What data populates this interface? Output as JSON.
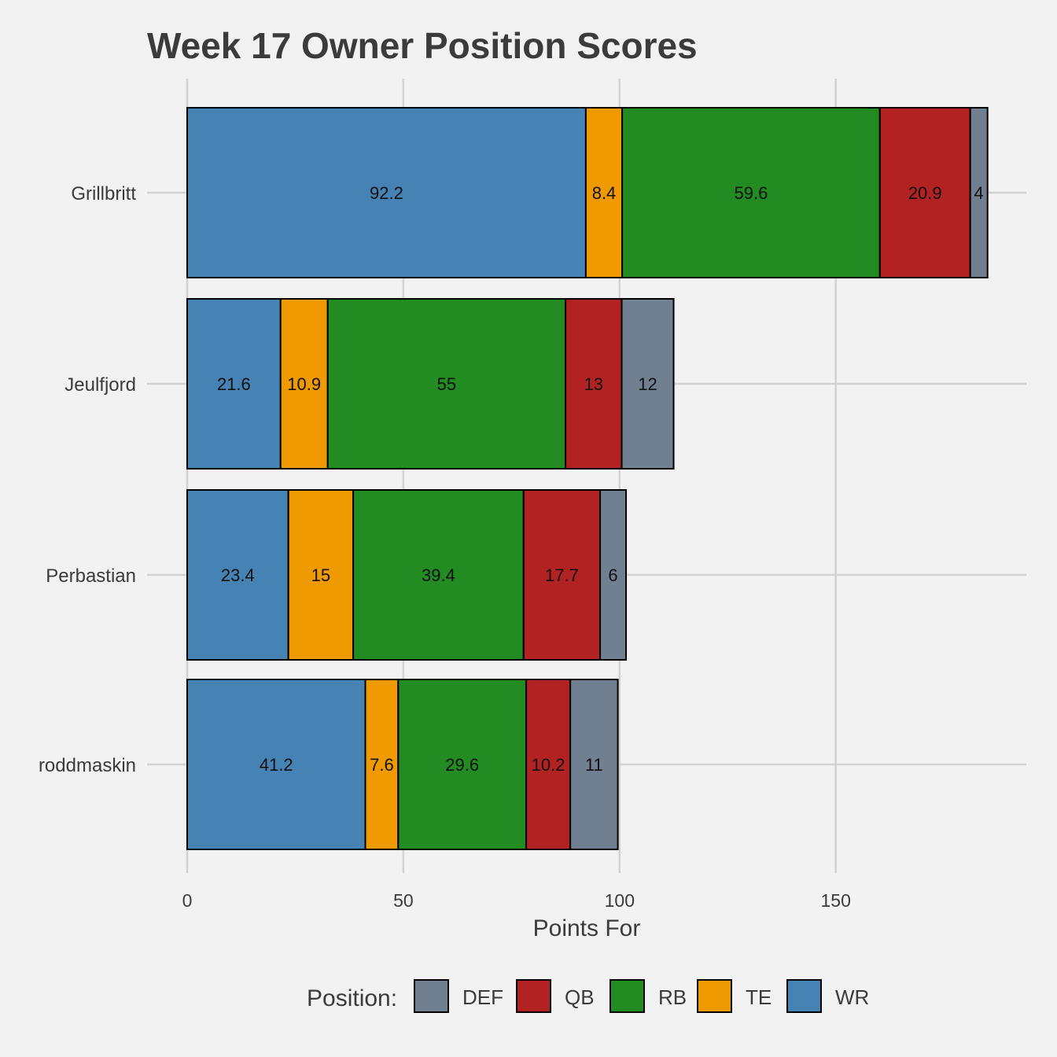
{
  "chart_data": {
    "type": "bar",
    "orientation": "horizontal",
    "stacked": true,
    "title": "Week 17 Owner Position Scores",
    "xlabel": "Points For",
    "ylabel": "",
    "xlim": [
      0,
      195
    ],
    "xticks": [
      0,
      50,
      100,
      150
    ],
    "grid": true,
    "legend_position": "bottom",
    "legend_title": "Position:",
    "categories": [
      "Grillbritt",
      "Jeulfjord",
      "Perbastian",
      "roddmaskin"
    ],
    "stack_order": [
      "WR",
      "TE",
      "RB",
      "QB",
      "DEF"
    ],
    "legend_order": [
      "DEF",
      "QB",
      "RB",
      "TE",
      "WR"
    ],
    "colors": {
      "DEF": "#708090",
      "QB": "#b22222",
      "RB": "#228b22",
      "TE": "#ee9a00",
      "WR": "#4682b4"
    },
    "series": [
      {
        "name": "WR",
        "values": [
          92.2,
          21.6,
          23.4,
          41.2
        ],
        "labels": [
          "92.2",
          "21.6",
          "23.4",
          "41.2"
        ]
      },
      {
        "name": "TE",
        "values": [
          8.4,
          10.9,
          15,
          7.6
        ],
        "labels": [
          "8.4",
          "10.9",
          "15",
          "7.6"
        ]
      },
      {
        "name": "RB",
        "values": [
          59.6,
          55,
          39.4,
          29.6
        ],
        "labels": [
          "59.6",
          "55",
          "39.4",
          "29.6"
        ]
      },
      {
        "name": "QB",
        "values": [
          20.9,
          13,
          17.7,
          10.2
        ],
        "labels": [
          "20.9",
          "13",
          "17.7",
          "10.2"
        ]
      },
      {
        "name": "DEF",
        "values": [
          4,
          12,
          6,
          11
        ],
        "labels": [
          "4",
          "12",
          "6",
          "11"
        ]
      }
    ]
  }
}
